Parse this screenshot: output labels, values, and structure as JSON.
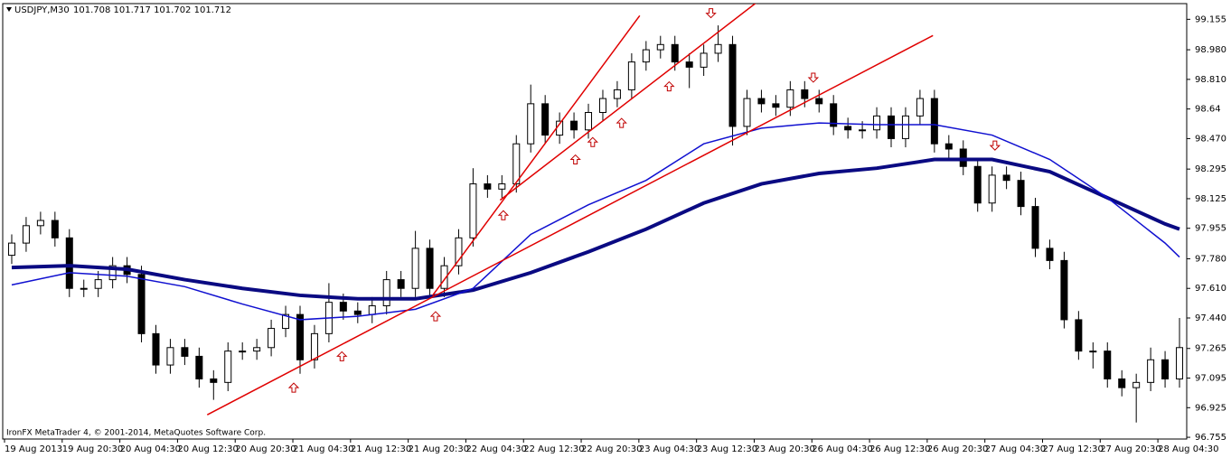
{
  "chart_data": {
    "type": "candlestick",
    "title": "USDJPY,M30",
    "quote": "101.708 101.717 101.702 101.712",
    "footer": "IronFX MetaTrader 4, © 2001-2014, MetaQuotes Software Corp.",
    "x_labels": [
      "19 Aug 2013",
      "19 Aug 20:30",
      "20 Aug 04:30",
      "20 Aug 12:30",
      "20 Aug 20:30",
      "21 Aug 04:30",
      "21 Aug 12:30",
      "21 Aug 20:30",
      "22 Aug 04:30",
      "22 Aug 12:30",
      "22 Aug 20:30",
      "23 Aug 04:30",
      "23 Aug 12:30",
      "23 Aug 20:30",
      "26 Aug 04:30",
      "26 Aug 12:30",
      "26 Aug 20:30",
      "27 Aug 04:30",
      "27 Aug 12:30",
      "27 Aug 20:30",
      "28 Aug 04:30"
    ],
    "ylim": [
      96.745,
      99.245
    ],
    "yticks": [
      99.155,
      {
        "value": 98.98,
        "label": "98.980"
      },
      {
        "value": 98.81,
        "label": "98.810"
      },
      98.64,
      {
        "value": 98.47,
        "label": "98.470"
      },
      98.295,
      98.125,
      97.955,
      {
        "value": 97.78,
        "label": "97.780"
      },
      {
        "value": 97.61,
        "label": "97.610"
      },
      {
        "value": 97.44,
        "label": "97.440"
      },
      97.265,
      97.095,
      96.925,
      96.755
    ],
    "candle_color": "#000000",
    "bull_fill": "#ffffff",
    "bear_fill": "#000000",
    "open": [
      97.8,
      97.87,
      97.97,
      98.0,
      97.9,
      97.61,
      97.61,
      97.66,
      97.74,
      97.69,
      97.35,
      97.17,
      97.27,
      97.22,
      97.09,
      97.07,
      97.25,
      97.25,
      97.27,
      97.38,
      97.46,
      97.2,
      97.35,
      97.53,
      97.48,
      97.46,
      97.51,
      97.66,
      97.61,
      97.84,
      97.61,
      97.74,
      97.9,
      98.21,
      98.18,
      98.21,
      98.44,
      98.67,
      98.49,
      98.57,
      98.52,
      98.62,
      98.7,
      98.75,
      98.91,
      98.98,
      99.01,
      98.91,
      98.88,
      98.96,
      99.01,
      98.54,
      98.7,
      98.67,
      98.65,
      98.75,
      98.7,
      98.67,
      98.54,
      98.52,
      98.52,
      98.6,
      98.47,
      98.6,
      98.7,
      98.44,
      98.41,
      98.31,
      98.1,
      98.26,
      98.23,
      98.08,
      97.84,
      97.77,
      97.43,
      97.25,
      97.25,
      97.09,
      97.04,
      97.07,
      97.2,
      97.09
    ],
    "high": [
      97.92,
      98.02,
      98.05,
      98.05,
      97.95,
      97.66,
      97.71,
      97.79,
      97.79,
      97.74,
      97.4,
      97.32,
      97.32,
      97.27,
      97.14,
      97.3,
      97.3,
      97.32,
      97.43,
      97.51,
      97.51,
      97.4,
      97.64,
      97.58,
      97.53,
      97.56,
      97.71,
      97.71,
      97.94,
      97.89,
      97.79,
      97.95,
      98.3,
      98.26,
      98.26,
      98.49,
      98.78,
      98.72,
      98.62,
      98.62,
      98.67,
      98.75,
      98.8,
      98.96,
      99.03,
      99.06,
      99.06,
      98.96,
      99.01,
      99.12,
      99.06,
      98.75,
      98.75,
      98.72,
      98.8,
      98.8,
      98.75,
      98.72,
      98.59,
      98.57,
      98.65,
      98.65,
      98.65,
      98.75,
      98.75,
      98.49,
      98.46,
      98.36,
      98.31,
      98.31,
      98.28,
      98.13,
      97.89,
      97.82,
      97.48,
      97.3,
      97.3,
      97.14,
      97.12,
      97.27,
      97.25,
      97.44
    ],
    "low": [
      97.75,
      97.82,
      97.92,
      97.85,
      97.56,
      97.56,
      97.56,
      97.61,
      97.64,
      97.3,
      97.12,
      97.12,
      97.17,
      97.04,
      96.97,
      97.02,
      97.2,
      97.2,
      97.22,
      97.33,
      97.12,
      97.15,
      97.3,
      97.43,
      97.41,
      97.41,
      97.46,
      97.56,
      97.56,
      97.56,
      97.56,
      97.69,
      97.85,
      98.13,
      98.13,
      98.16,
      98.39,
      98.44,
      98.44,
      98.47,
      98.47,
      98.57,
      98.65,
      98.7,
      98.86,
      98.93,
      98.86,
      98.76,
      98.83,
      98.91,
      98.43,
      98.49,
      98.62,
      98.6,
      98.6,
      98.65,
      98.62,
      98.49,
      98.47,
      98.47,
      98.47,
      98.42,
      98.42,
      98.55,
      98.39,
      98.36,
      98.26,
      98.05,
      98.05,
      98.18,
      98.03,
      97.79,
      97.72,
      97.38,
      97.2,
      97.15,
      97.04,
      96.99,
      96.84,
      97.02,
      97.04,
      97.04
    ],
    "close": [
      97.87,
      97.97,
      98.0,
      97.9,
      97.61,
      97.61,
      97.66,
      97.74,
      97.69,
      97.35,
      97.17,
      97.27,
      97.22,
      97.09,
      97.07,
      97.25,
      97.25,
      97.27,
      97.38,
      97.46,
      97.2,
      97.35,
      97.53,
      97.48,
      97.46,
      97.51,
      97.66,
      97.61,
      97.84,
      97.61,
      97.74,
      97.9,
      98.21,
      98.18,
      98.21,
      98.44,
      98.67,
      98.49,
      98.57,
      98.52,
      98.62,
      98.7,
      98.75,
      98.91,
      98.98,
      99.01,
      98.91,
      98.88,
      98.96,
      99.01,
      98.54,
      98.7,
      98.67,
      98.65,
      98.75,
      98.7,
      98.67,
      98.54,
      98.52,
      98.52,
      98.6,
      98.47,
      98.6,
      98.7,
      98.44,
      98.41,
      98.31,
      98.1,
      98.26,
      98.23,
      98.08,
      97.84,
      97.77,
      97.43,
      97.25,
      97.25,
      97.09,
      97.04,
      97.07,
      97.2,
      97.09,
      97.27
    ],
    "lines": [
      {
        "color": "#0a0a82",
        "width": 4,
        "x": [
          0,
          4,
          8,
          12,
          16,
          20,
          24,
          28,
          32,
          36,
          40,
          44,
          48,
          52,
          56,
          60,
          64,
          68,
          72,
          76,
          80,
          81
        ],
        "values": [
          97.73,
          97.74,
          97.72,
          97.66,
          97.61,
          97.57,
          97.55,
          97.55,
          97.6,
          97.7,
          97.82,
          97.95,
          98.1,
          98.21,
          98.27,
          98.3,
          98.35,
          98.35,
          98.28,
          98.13,
          97.98,
          97.95
        ]
      },
      {
        "color": "#1010d0",
        "width": 1.5,
        "x": [
          0,
          4,
          8,
          12,
          16,
          20,
          24,
          28,
          32,
          36,
          40,
          44,
          48,
          52,
          56,
          60,
          64,
          68,
          72,
          76,
          80,
          81
        ],
        "values": [
          97.63,
          97.7,
          97.68,
          97.62,
          97.52,
          97.43,
          97.45,
          97.49,
          97.61,
          97.92,
          98.09,
          98.23,
          98.44,
          98.53,
          98.56,
          98.55,
          98.55,
          98.49,
          98.35,
          98.13,
          97.87,
          97.79
        ]
      }
    ],
    "trendline_color": "#e00000",
    "trendlines": [
      {
        "x": [
          13.56,
          63.9
        ],
        "values": [
          96.884,
          99.062
        ]
      },
      {
        "x": [
          29.19,
          43.56
        ],
        "values": [
          97.569,
          99.176
        ]
      },
      {
        "x": [
          33.88,
          51.69
        ],
        "values": [
          98.117,
          99.253
        ]
      }
    ],
    "arrow_color": "#c00000",
    "up_arrows": {
      "x": [
        19.56,
        22.9,
        29.4,
        34.1,
        39.1,
        40.3,
        42.3,
        45.6
      ],
      "values": [
        97.04,
        97.22,
        97.45,
        98.03,
        98.35,
        98.45,
        98.56,
        98.77
      ]
    },
    "down_arrows": {
      "x": [
        48.5,
        55.6,
        68.2
      ],
      "values": [
        99.19,
        98.82,
        98.43
      ]
    }
  }
}
